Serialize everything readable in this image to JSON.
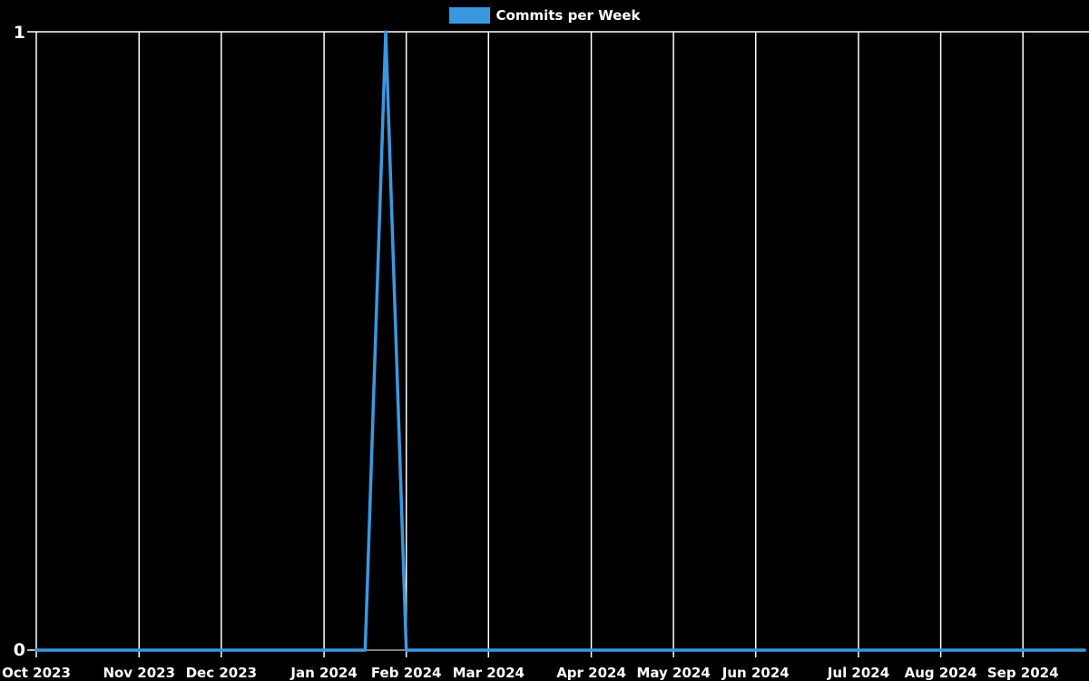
{
  "colors": {
    "background": "#000000",
    "grid": "#ffffff",
    "text": "#ffffff",
    "line": "#3b98e0"
  },
  "legend": {
    "label": "Commits per Week",
    "swatch_color": "#3b98e0",
    "position": "top-center"
  },
  "chart_data": {
    "type": "line",
    "title": "Commits per Week",
    "series_name": "Commits per Week",
    "x": [
      "2023-10-01",
      "2023-10-08",
      "2023-10-15",
      "2023-10-22",
      "2023-10-29",
      "2023-11-05",
      "2023-11-12",
      "2023-11-19",
      "2023-11-26",
      "2023-12-03",
      "2023-12-10",
      "2023-12-17",
      "2023-12-24",
      "2023-12-31",
      "2024-01-07",
      "2024-01-14",
      "2024-01-21",
      "2024-01-28",
      "2024-02-04",
      "2024-02-11",
      "2024-02-18",
      "2024-02-25",
      "2024-03-03",
      "2024-03-10",
      "2024-03-17",
      "2024-03-24",
      "2024-03-31",
      "2024-04-07",
      "2024-04-14",
      "2024-04-21",
      "2024-04-28",
      "2024-05-05",
      "2024-05-12",
      "2024-05-19",
      "2024-05-26",
      "2024-06-02",
      "2024-06-09",
      "2024-06-16",
      "2024-06-23",
      "2024-06-30",
      "2024-07-07",
      "2024-07-14",
      "2024-07-21",
      "2024-07-28",
      "2024-08-04",
      "2024-08-11",
      "2024-08-18",
      "2024-08-25",
      "2024-09-01",
      "2024-09-08",
      "2024-09-15",
      "2024-09-22"
    ],
    "values": [
      0,
      0,
      0,
      0,
      0,
      0,
      0,
      0,
      0,
      0,
      0,
      0,
      0,
      0,
      0,
      0,
      0,
      1,
      0,
      0,
      0,
      0,
      0,
      0,
      0,
      0,
      0,
      0,
      0,
      0,
      0,
      0,
      0,
      0,
      0,
      0,
      0,
      0,
      0,
      0,
      0,
      0,
      0,
      0,
      0,
      0,
      0,
      0,
      0,
      0,
      0,
      0
    ],
    "x_tick_labels": [
      "Oct 2023",
      "Nov 2023",
      "Dec 2023",
      "Jan 2024",
      "Feb 2024",
      "Mar 2024",
      "Apr 2024",
      "May 2024",
      "Jun 2024",
      "Jul 2024",
      "Aug 2024",
      "Sep 2024"
    ],
    "y_tick_labels": [
      "0",
      "1"
    ],
    "ylim": [
      0,
      1
    ],
    "xlabel": "",
    "ylabel": "",
    "grid": "vertical gridline at first week of each month, horizontal line at y max",
    "legend_position": "top-center"
  }
}
